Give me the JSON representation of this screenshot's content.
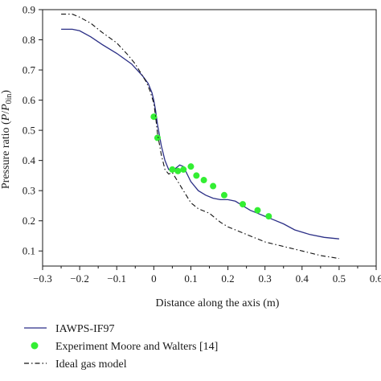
{
  "chart_data": {
    "type": "line",
    "xlabel": "Distance along the axis (m)",
    "ylabel": "Pressure ratio (P/P0in)",
    "ylabel_parts": {
      "main": "Pressure ratio (",
      "p1": "P",
      "slash": "/",
      "p2": "P",
      "sub": "0in",
      "close": ")"
    },
    "xlim": [
      -0.3,
      0.6
    ],
    "ylim": [
      0.05,
      0.9
    ],
    "x_ticks": [
      -0.3,
      -0.2,
      -0.1,
      0,
      0.1,
      0.2,
      0.3,
      0.4,
      0.5,
      0.6
    ],
    "x_tick_labels": [
      "−0.3",
      "−0.2",
      "−0.1",
      "0",
      "0.1",
      "0.2",
      "0.3",
      "0.4",
      "0.5",
      "0.6"
    ],
    "y_ticks": [
      0.1,
      0.2,
      0.3,
      0.4,
      0.5,
      0.6,
      0.7,
      0.8,
      0.9
    ],
    "y_tick_labels": [
      "0.1",
      "0.2",
      "0.3",
      "0.4",
      "0.5",
      "0.6",
      "0.7",
      "0.8",
      "0.9"
    ],
    "grid": false,
    "legend_position": "bottom",
    "series": [
      {
        "name": "IAWPS-IF97",
        "style": "solid-line",
        "color": "#2b2f86",
        "x": [
          -0.25,
          -0.22,
          -0.2,
          -0.17,
          -0.14,
          -0.1,
          -0.06,
          -0.03,
          -0.015,
          -0.005,
          0.0,
          0.005,
          0.01,
          0.02,
          0.03,
          0.04,
          0.05,
          0.06,
          0.07,
          0.08,
          0.09,
          0.1,
          0.12,
          0.14,
          0.16,
          0.18,
          0.2,
          0.22,
          0.24,
          0.26,
          0.28,
          0.3,
          0.32,
          0.35,
          0.38,
          0.42,
          0.46,
          0.5
        ],
        "y": [
          0.835,
          0.835,
          0.83,
          0.81,
          0.785,
          0.755,
          0.72,
          0.68,
          0.655,
          0.625,
          0.6,
          0.565,
          0.52,
          0.45,
          0.4,
          0.37,
          0.365,
          0.375,
          0.385,
          0.38,
          0.355,
          0.33,
          0.3,
          0.285,
          0.275,
          0.27,
          0.27,
          0.265,
          0.25,
          0.235,
          0.225,
          0.215,
          0.205,
          0.19,
          0.17,
          0.155,
          0.145,
          0.14
        ]
      },
      {
        "name": "Experiment Moore and Walters [14]",
        "style": "markers",
        "color": "#33ee33",
        "x": [
          0.0,
          0.01,
          0.05,
          0.065,
          0.08,
          0.1,
          0.115,
          0.135,
          0.16,
          0.19,
          0.24,
          0.28,
          0.31
        ],
        "y": [
          0.545,
          0.475,
          0.37,
          0.365,
          0.37,
          0.38,
          0.35,
          0.335,
          0.315,
          0.285,
          0.255,
          0.235,
          0.215
        ]
      },
      {
        "name": "Ideal gas model",
        "style": "dash-dot-line",
        "color": "#111111",
        "x": [
          -0.25,
          -0.22,
          -0.2,
          -0.17,
          -0.14,
          -0.1,
          -0.07,
          -0.05,
          -0.035,
          -0.02,
          -0.01,
          0.0,
          0.005,
          0.01,
          0.02,
          0.03,
          0.04,
          0.05,
          0.06,
          0.08,
          0.1,
          0.12,
          0.15,
          0.18,
          0.2,
          0.22,
          0.25,
          0.3,
          0.35,
          0.4,
          0.45,
          0.5
        ],
        "y": [
          0.885,
          0.885,
          0.875,
          0.855,
          0.825,
          0.79,
          0.75,
          0.72,
          0.69,
          0.66,
          0.63,
          0.59,
          0.545,
          0.49,
          0.42,
          0.37,
          0.355,
          0.36,
          0.34,
          0.3,
          0.26,
          0.24,
          0.225,
          0.195,
          0.18,
          0.17,
          0.155,
          0.13,
          0.115,
          0.1,
          0.085,
          0.075
        ]
      }
    ]
  }
}
